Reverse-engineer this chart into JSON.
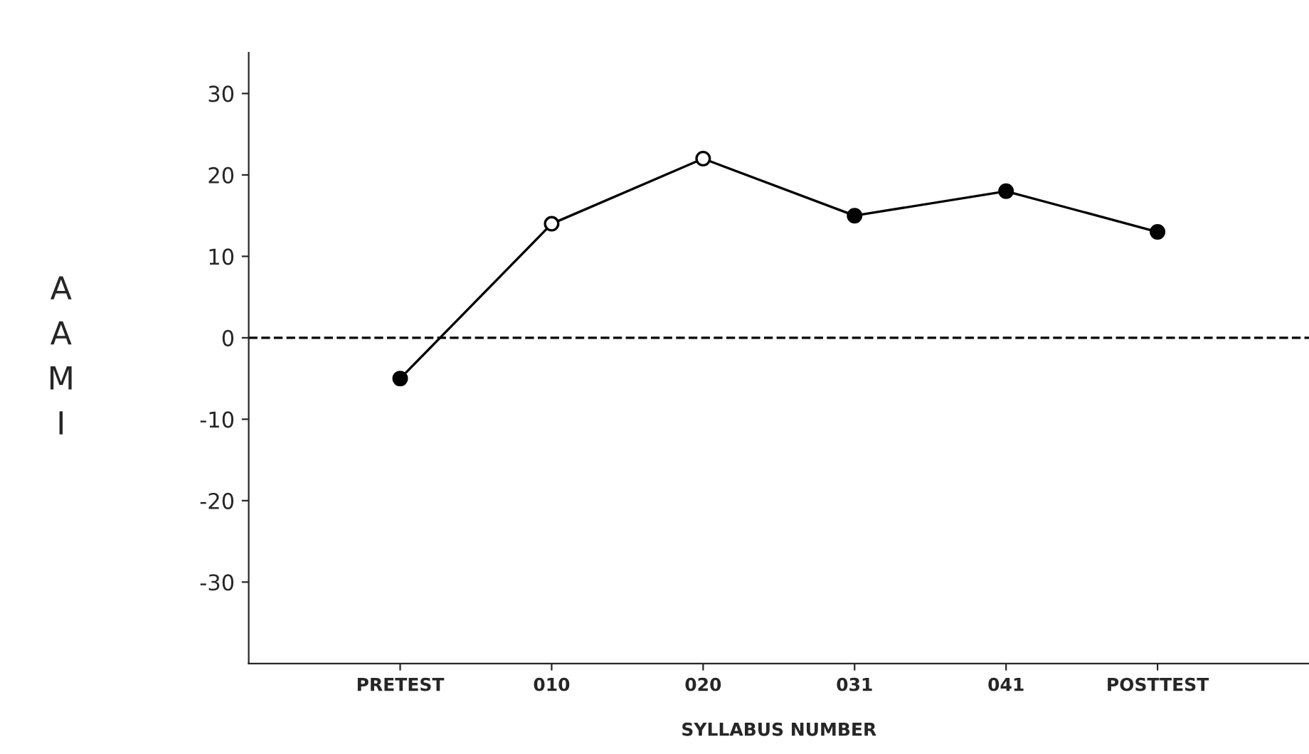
{
  "chart_data": {
    "type": "line",
    "xlabel": "SYLLABUS NUMBER",
    "ylabel": "AAMI",
    "categories": [
      "PRETEST",
      "010",
      "020",
      "031",
      "041",
      "POSTTEST"
    ],
    "series": [
      {
        "color": "#000000",
        "values": [
          -5,
          14,
          22,
          15,
          18,
          13
        ],
        "colors": [
          "#000000",
          "#ffffff",
          "#ffffff",
          "#000000",
          "#000000",
          "#000000"
        ]
      }
    ],
    "ylim": [
      -40,
      35
    ],
    "yticks": [
      -30,
      -20,
      -10,
      0,
      10,
      20,
      30
    ],
    "ref_lines": [
      {
        "axis": "y",
        "value": 0,
        "line_style": "dashed",
        "color": "#000000"
      }
    ],
    "marker": "circle",
    "line_style": "solid",
    "grid": false
  }
}
